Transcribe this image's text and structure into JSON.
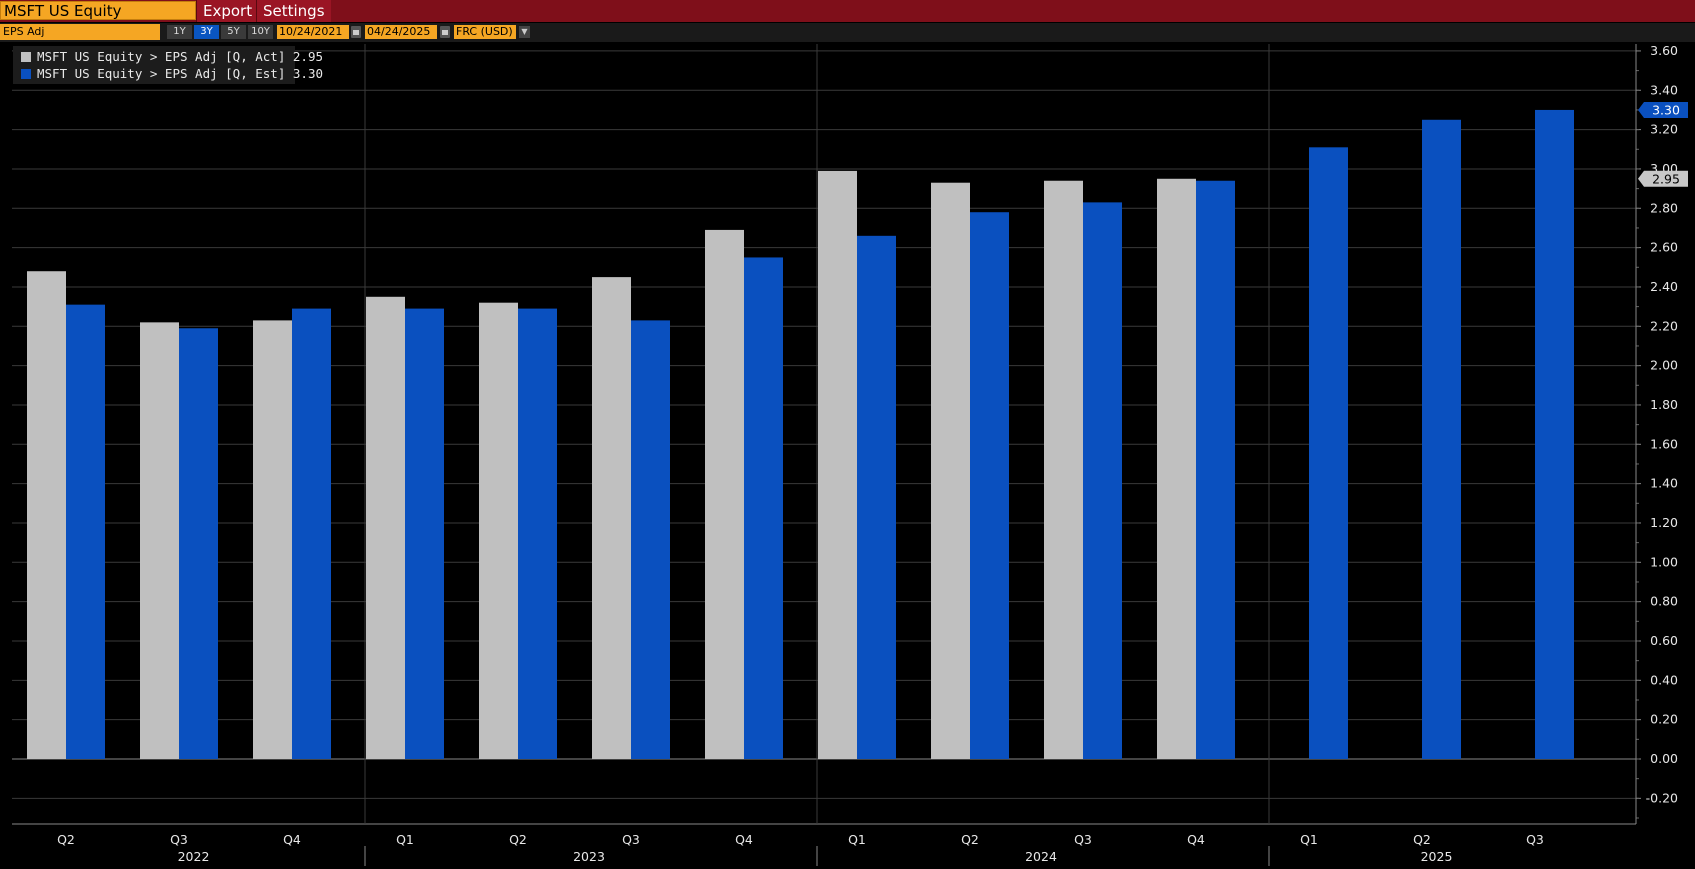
{
  "header": {
    "ticker": "MSFT US Equity",
    "export_label": "Export",
    "settings_label": "Settings"
  },
  "toolbar": {
    "field": "EPS Adj",
    "ranges": [
      "1Y",
      "3Y",
      "5Y",
      "10Y"
    ],
    "active_range": "3Y",
    "start_date": "10/24/2021",
    "end_date": "04/24/2025",
    "currency": "FRC (USD)"
  },
  "colors": {
    "actual": "#c0c0c0",
    "estimate": "#0a50bf",
    "background": "#000000",
    "grid": "#3a3a3a"
  },
  "chart_data": {
    "type": "bar",
    "legend_position": "top-left",
    "grid": true,
    "ylim": [
      -0.3,
      3.62
    ],
    "yticks": [
      -0.2,
      0.0,
      0.2,
      0.4,
      0.6,
      0.8,
      1.0,
      1.2,
      1.4,
      1.6,
      1.8,
      2.0,
      2.2,
      2.4,
      2.6,
      2.8,
      3.0,
      3.2,
      3.4,
      3.6
    ],
    "categories": [
      "Q2",
      "Q3",
      "Q4",
      "Q1",
      "Q2",
      "Q3",
      "Q4",
      "Q1",
      "Q2",
      "Q3",
      "Q4",
      "Q1",
      "Q2",
      "Q3"
    ],
    "year_labels": [
      {
        "label": "2022",
        "first": 0,
        "last": 2
      },
      {
        "label": "2023",
        "first": 3,
        "last": 6
      },
      {
        "label": "2024",
        "first": 7,
        "last": 10
      },
      {
        "label": "2025",
        "first": 11,
        "last": 13
      }
    ],
    "series": [
      {
        "name": "MSFT US Equity > EPS Adj [Q, Act]",
        "last_value": "2.95",
        "values": [
          2.48,
          2.22,
          2.23,
          2.35,
          2.32,
          2.45,
          2.69,
          2.99,
          2.93,
          2.94,
          2.95,
          null,
          null,
          null
        ]
      },
      {
        "name": "MSFT US Equity > EPS Adj [Q, Est]",
        "last_value": "3.30",
        "values": [
          2.31,
          2.19,
          2.29,
          2.29,
          2.29,
          2.23,
          2.55,
          2.66,
          2.78,
          2.83,
          2.94,
          3.11,
          3.25,
          3.3
        ]
      }
    ]
  }
}
